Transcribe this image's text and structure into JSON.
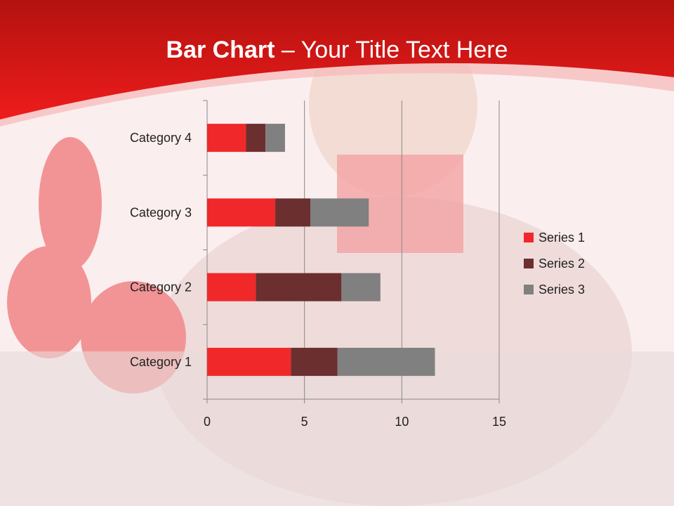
{
  "slide": {
    "title_bold": "Bar Chart",
    "title_sep": " – ",
    "title_rest": "Your Title Text Here"
  },
  "colors": {
    "header": "#e8171b",
    "background": "#fbeeee"
  },
  "chart_data": {
    "type": "bar",
    "orientation": "horizontal",
    "stacked": true,
    "categories": [
      "Category 1",
      "Category 2",
      "Category 3",
      "Category 4"
    ],
    "series": [
      {
        "name": "Series 1",
        "values": [
          4.3,
          2.5,
          3.5,
          2.0
        ],
        "color": "#f0282a"
      },
      {
        "name": "Series 2",
        "values": [
          2.4,
          4.4,
          1.8,
          1.0
        ],
        "color": "#6b2f2f"
      },
      {
        "name": "Series 3",
        "values": [
          5.0,
          2.0,
          3.0,
          1.0
        ],
        "color": "#808080"
      }
    ],
    "xlim": [
      0,
      15
    ],
    "xticks": [
      "0",
      "5",
      "10",
      "15"
    ],
    "grid": true,
    "legend": "right"
  }
}
